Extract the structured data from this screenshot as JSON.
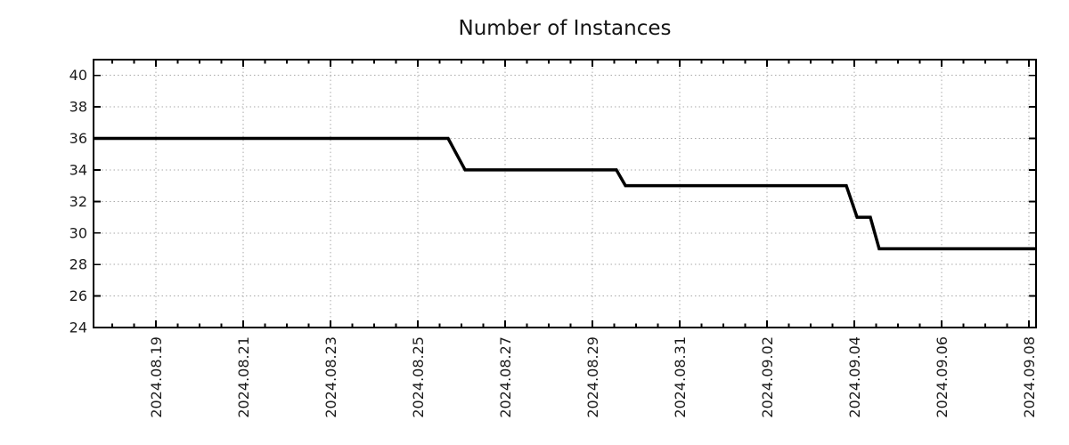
{
  "figure": {
    "background": "#ffffff"
  },
  "chart_data": {
    "type": "line",
    "style": "steps",
    "title": "Number of Instances",
    "xlabel": "",
    "ylabel": "",
    "legend": false,
    "grid": true,
    "ylim": [
      24,
      41
    ],
    "y_ticks": [
      24,
      26,
      28,
      30,
      32,
      34,
      36,
      38,
      40
    ],
    "x_range": [
      "2024-08-17T13:43",
      "2024-09-08T03:55"
    ],
    "x_ticks": [
      {
        "t": "2024-08-19T00:00",
        "label": "2024.08.19"
      },
      {
        "t": "2024-08-21T00:00",
        "label": "2024.08.21"
      },
      {
        "t": "2024-08-23T00:00",
        "label": "2024.08.23"
      },
      {
        "t": "2024-08-25T00:00",
        "label": "2024.08.25"
      },
      {
        "t": "2024-08-27T00:00",
        "label": "2024.08.27"
      },
      {
        "t": "2024-08-29T00:00",
        "label": "2024.08.29"
      },
      {
        "t": "2024-08-31T00:00",
        "label": "2024.08.31"
      },
      {
        "t": "2024-09-02T00:00",
        "label": "2024.09.02"
      },
      {
        "t": "2024-09-04T00:00",
        "label": "2024.09.04"
      },
      {
        "t": "2024-09-06T00:00",
        "label": "2024.09.06"
      },
      {
        "t": "2024-09-08T00:00",
        "label": "2024.09.08"
      }
    ],
    "minor_tick_hours": 12,
    "series": [
      {
        "name": "instances",
        "color": "#000000",
        "line_width": 3.5,
        "points": [
          {
            "t": "2024-08-17T13:43",
            "y": 36
          },
          {
            "t": "2024-08-25T16:40",
            "y": 36
          },
          {
            "t": "2024-08-26T02:00",
            "y": 34
          },
          {
            "t": "2024-08-29T13:10",
            "y": 34
          },
          {
            "t": "2024-08-29T18:10",
            "y": 33
          },
          {
            "t": "2024-09-03T19:35",
            "y": 33
          },
          {
            "t": "2024-09-04T01:30",
            "y": 31
          },
          {
            "t": "2024-09-04T08:50",
            "y": 31
          },
          {
            "t": "2024-09-04T13:40",
            "y": 29
          },
          {
            "t": "2024-09-08T03:55",
            "y": 29
          }
        ]
      }
    ],
    "colors": {
      "grid": "#a9a9a9",
      "axis": "#000000",
      "text": "#1c1c1c",
      "series": "#000000"
    }
  }
}
